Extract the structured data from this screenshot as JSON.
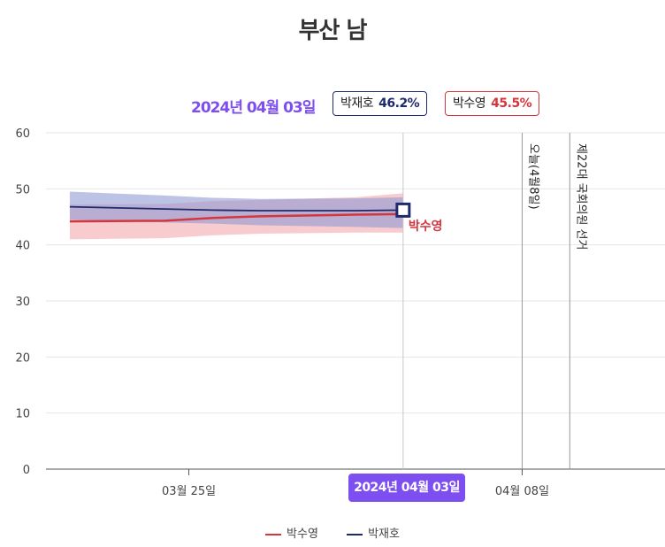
{
  "chart_data": {
    "type": "line",
    "title": "부산 남",
    "hover": {
      "date_label": "2024년 04월 03일",
      "values": [
        {
          "name": "박재호",
          "value_label": "46.2%"
        },
        {
          "name": "박수영",
          "value_label": "45.5%"
        }
      ]
    },
    "x_ticks": [
      {
        "date": "2024-03-25",
        "label": "03월 25일"
      },
      {
        "date": "2024-04-08",
        "label": "04월 08일"
      }
    ],
    "x_range": [
      "2024-03-19",
      "2024-04-14"
    ],
    "ylim": [
      0,
      60
    ],
    "y_ticks": [
      0,
      10,
      20,
      30,
      40,
      50,
      60
    ],
    "grid": true,
    "series": [
      {
        "name": "박수영",
        "color": "#d5353d",
        "band_color": "#f4a8ae",
        "points": [
          {
            "date": "2024-03-20",
            "value": 44.2,
            "low": 41.0,
            "high": 47.2
          },
          {
            "date": "2024-03-24",
            "value": 44.3,
            "low": 41.2,
            "high": 47.3
          },
          {
            "date": "2024-03-26",
            "value": 44.8,
            "low": 41.7,
            "high": 47.8
          },
          {
            "date": "2024-03-28",
            "value": 45.1,
            "low": 42.0,
            "high": 48.0
          },
          {
            "date": "2024-04-01",
            "value": 45.4,
            "low": 42.2,
            "high": 48.5
          },
          {
            "date": "2024-04-03",
            "value": 45.5,
            "low": 42.2,
            "high": 49.2
          }
        ]
      },
      {
        "name": "박재호",
        "color": "#1e2a6e",
        "band_color": "#8f9bd4",
        "points": [
          {
            "date": "2024-03-20",
            "value": 46.8,
            "low": 44.5,
            "high": 49.5
          },
          {
            "date": "2024-03-24",
            "value": 46.4,
            "low": 44.0,
            "high": 48.8
          },
          {
            "date": "2024-03-26",
            "value": 46.2,
            "low": 43.8,
            "high": 48.4
          },
          {
            "date": "2024-03-28",
            "value": 46.1,
            "low": 43.5,
            "high": 48.2
          },
          {
            "date": "2024-04-01",
            "value": 46.1,
            "low": 43.2,
            "high": 48.3
          },
          {
            "date": "2024-04-03",
            "value": 46.2,
            "low": 43.0,
            "high": 48.5
          }
        ]
      }
    ],
    "hover_date": "2024-04-03",
    "end_label": "박수영",
    "events": [
      {
        "date": "2024-04-08",
        "label": "오늘(4월8일)"
      },
      {
        "date": "2024-04-10",
        "label": "제22대 국회의원 선거"
      }
    ],
    "tooltip_label": "2024년 04월 03일",
    "legend": [
      "박수영",
      "박재호"
    ]
  }
}
